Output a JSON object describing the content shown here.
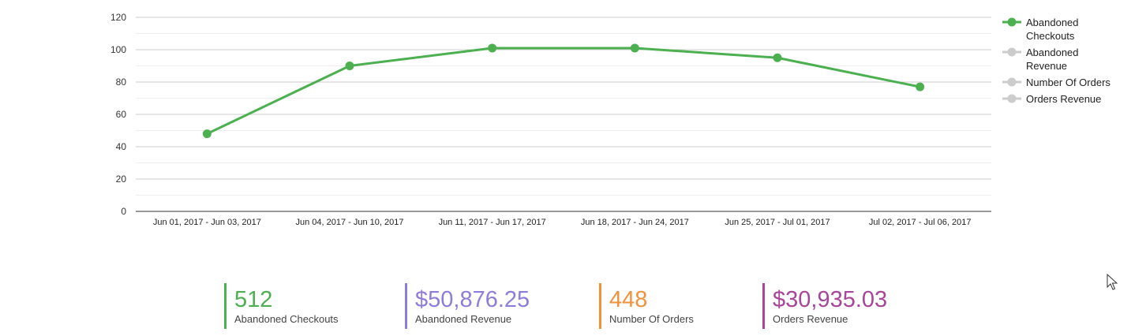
{
  "chart_data": {
    "type": "line",
    "categories": [
      "Jun 01, 2017 - Jun 03, 2017",
      "Jun 04, 2017 - Jun 10, 2017",
      "Jun 11, 2017 - Jun 17, 2017",
      "Jun 18, 2017 - Jun 24, 2017",
      "Jun 25, 2017 - Jul 01, 2017",
      "Jul 02, 2017 - Jul 06, 2017"
    ],
    "series": [
      {
        "name": "Abandoned Checkouts",
        "values": [
          48,
          90,
          101,
          101,
          95,
          77
        ],
        "color": "#4caf50",
        "visible": true
      }
    ],
    "ylim": [
      0,
      120
    ],
    "yticks": [
      0,
      20,
      40,
      60,
      80,
      100,
      120
    ],
    "grid": true,
    "legend_placement": "right",
    "legend": [
      {
        "lines": [
          "Abandoned",
          "Checkouts"
        ],
        "active": true,
        "color": "#4caf50"
      },
      {
        "lines": [
          "Abandoned",
          "Revenue"
        ],
        "active": false,
        "color": "#cccccc"
      },
      {
        "lines": [
          "Number Of Orders"
        ],
        "active": false,
        "color": "#cccccc"
      },
      {
        "lines": [
          "Orders Revenue"
        ],
        "active": false,
        "color": "#cccccc"
      }
    ]
  },
  "summary": [
    {
      "value": "512",
      "label": "Abandoned Checkouts",
      "color": "#4caf50"
    },
    {
      "value": "$50,876.25",
      "label": "Abandoned Revenue",
      "color": "#8e7cdb"
    },
    {
      "value": "448",
      "label": "Number Of Orders",
      "color": "#f0923a"
    },
    {
      "value": "$30,935.03",
      "label": "Orders Revenue",
      "color": "#a6459a"
    }
  ]
}
